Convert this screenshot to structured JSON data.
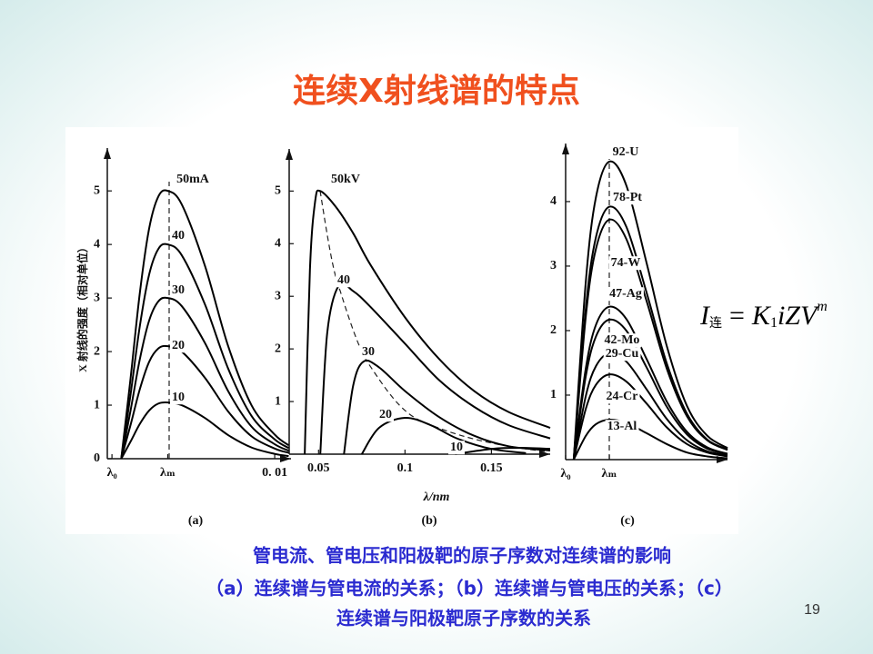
{
  "header": {
    "title": "连续X射线谱的特点"
  },
  "chart_data": [
    {
      "type": "line",
      "label": "(a)",
      "ylabel": "X 射线的强度（相对单位）",
      "color": "#000000",
      "xlim": [
        0.0028,
        0.0107
      ],
      "ylim": [
        0,
        5.8
      ],
      "xticks": [
        {
          "value": 0.003,
          "label": "λ₀"
        },
        {
          "value": 0.0054,
          "label": "λₘ"
        },
        {
          "value": 0.01,
          "label": "0. 01"
        }
      ],
      "yticks": [
        0,
        1,
        2,
        3,
        4,
        5
      ],
      "x": [
        0.0034,
        0.0038,
        0.0042,
        0.0046,
        0.005,
        0.0054,
        0.006,
        0.007,
        0.008,
        0.009,
        0.01,
        0.0106
      ],
      "series": [
        {
          "name": "50mA",
          "values": [
            0,
            1.5,
            3.1,
            4.3,
            4.9,
            5,
            4.75,
            3.6,
            2.1,
            1.0,
            0.45,
            0.25
          ]
        },
        {
          "name": "40",
          "values": [
            0,
            1.2,
            2.48,
            3.44,
            3.92,
            4,
            3.8,
            2.88,
            1.68,
            0.8,
            0.36,
            0.2
          ]
        },
        {
          "name": "30",
          "values": [
            0,
            0.9,
            1.86,
            2.58,
            2.94,
            3,
            2.85,
            2.16,
            1.26,
            0.6,
            0.27,
            0.15
          ]
        },
        {
          "name": "20",
          "values": [
            0,
            0.63,
            1.3,
            1.81,
            2.06,
            2.1,
            2.0,
            1.51,
            0.88,
            0.42,
            0.19,
            0.11
          ]
        },
        {
          "name": "10",
          "values": [
            0,
            0.32,
            0.65,
            0.9,
            1.03,
            1.05,
            1.0,
            0.76,
            0.44,
            0.21,
            0.09,
            0.05
          ]
        }
      ]
    },
    {
      "type": "line",
      "label": "(b)",
      "xlabel": "λ/nm",
      "color": "#000000",
      "xlim": [
        0.033,
        0.184
      ],
      "ylim": [
        0,
        5.8
      ],
      "xticks": [
        0.05,
        0.1,
        0.15
      ],
      "yticks": [
        1,
        2,
        3,
        4,
        5
      ],
      "series": [
        {
          "name": "50kV",
          "x": [
            0.042,
            0.045,
            0.048,
            0.051,
            0.06,
            0.07,
            0.08,
            0.1,
            0.12,
            0.14,
            0.16,
            0.184
          ],
          "values": [
            0,
            3.5,
            4.8,
            5,
            4.7,
            4.2,
            3.6,
            2.6,
            1.8,
            1.2,
            0.8,
            0.5
          ]
        },
        {
          "name": "40",
          "x": [
            0.051,
            0.055,
            0.0616,
            0.07,
            0.08,
            0.1,
            0.12,
            0.14,
            0.16,
            0.184
          ],
          "values": [
            0,
            2.3,
            3.2,
            3.1,
            2.8,
            2.1,
            1.4,
            0.9,
            0.55,
            0.3
          ]
        },
        {
          "name": "30",
          "x": [
            0.0647,
            0.07,
            0.076,
            0.085,
            0.1,
            0.12,
            0.14,
            0.16,
            0.184
          ],
          "values": [
            0,
            1.3,
            1.76,
            1.65,
            1.2,
            0.7,
            0.35,
            0.15,
            0.07
          ]
        },
        {
          "name": "20",
          "x": [
            0.075,
            0.085,
            0.1,
            0.115,
            0.13,
            0.15,
            0.17
          ],
          "values": [
            0,
            0.5,
            0.69,
            0.55,
            0.3,
            0.1,
            0.02
          ]
        },
        {
          "name": "10",
          "x": [
            0.129,
            0.15,
            0.166,
            0.184
          ],
          "values": [
            0,
            0.1,
            0.12,
            0.1
          ]
        }
      ]
    },
    {
      "type": "line",
      "label": "(c)",
      "color": "#000000",
      "xlim": [
        0.003,
        0.011
      ],
      "ylim": [
        0,
        4.9
      ],
      "xticks": [
        {
          "value": 0.003,
          "label": "λ₀"
        },
        {
          "value": 0.00516,
          "label": "λₘ"
        }
      ],
      "yticks": [
        1,
        2,
        3,
        4
      ],
      "x": [
        0.0034,
        0.004,
        0.0045,
        0.00516,
        0.006,
        0.007,
        0.008,
        0.009,
        0.01,
        0.011
      ],
      "series": [
        {
          "name": "92-U",
          "values": [
            0,
            2.77,
            4.07,
            4.62,
            4.25,
            3.05,
            1.76,
            0.83,
            0.37,
            0.18
          ]
        },
        {
          "name": "78-Pt",
          "values": [
            0,
            2.35,
            3.45,
            3.92,
            3.61,
            2.59,
            1.49,
            0.71,
            0.31,
            0.16
          ]
        },
        {
          "name": "74-W",
          "values": [
            0,
            2.23,
            3.27,
            3.72,
            3.42,
            2.46,
            1.41,
            0.67,
            0.3,
            0.15
          ]
        },
        {
          "name": "47-Ag",
          "values": [
            0,
            1.42,
            2.09,
            2.37,
            2.18,
            1.56,
            0.9,
            0.43,
            0.19,
            0.09
          ]
        },
        {
          "name": "42-Mo",
          "values": [
            0,
            1.3,
            1.91,
            2.17,
            2.0,
            1.43,
            0.82,
            0.39,
            0.17,
            0.09
          ]
        },
        {
          "name": "29-Cu",
          "values": [
            0,
            0.99,
            1.45,
            1.65,
            1.52,
            1.09,
            0.63,
            0.3,
            0.13,
            0.07
          ]
        },
        {
          "name": "24-Cr",
          "values": [
            0,
            0.79,
            1.16,
            1.32,
            1.21,
            0.87,
            0.5,
            0.24,
            0.11,
            0.05
          ]
        },
        {
          "name": "13-Al",
          "values": [
            0,
            0.37,
            0.55,
            0.62,
            0.57,
            0.41,
            0.24,
            0.11,
            0.05,
            0.02
          ]
        }
      ]
    }
  ],
  "formula": {
    "parts": [
      "I",
      "连",
      "=",
      "K",
      "1",
      "iZV",
      "m"
    ]
  },
  "caption": [
    "管电流、管电压和阳极靶的原子序数对连续谱的影响",
    "（a）连续谱与管电流的关系；（b）连续谱与管电压的关系；（c）",
    "连续谱与阳极靶原子序数的关系"
  ],
  "page_number": 19
}
